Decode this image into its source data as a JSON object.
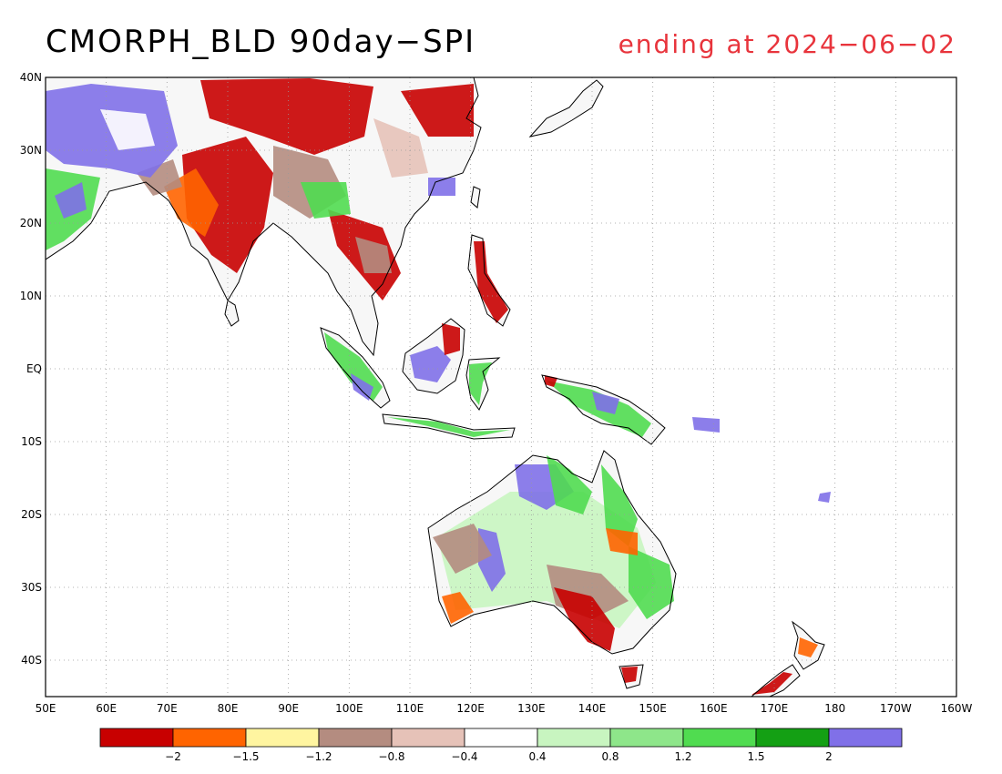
{
  "title": "CMORPH_BLD 90day−SPI",
  "subtitle": "ending at 2024−06−02",
  "colors": {
    "title": "#000000",
    "subtitle": "#e8343c",
    "land_base": "#f7f7f7",
    "coast": "#000000",
    "grid": "#9a9a9a",
    "dry_extreme": "#c80000",
    "dry_severe": "#ff6400",
    "dry_moderate": "#fff5a0",
    "dry_mild": "#b48c80",
    "dry_slight": "#e6c2b8",
    "neutral": "#ffffff",
    "wet_slight": "#c8f5c0",
    "wet_mild": "#8ee68a",
    "wet_moderate": "#50dc50",
    "wet_severe": "#14a014",
    "wet_extreme": "#8070e8"
  },
  "lat_labels": [
    "40N",
    "30N",
    "20N",
    "10N",
    "EQ",
    "10S",
    "20S",
    "30S",
    "40S"
  ],
  "lon_labels": [
    "50E",
    "60E",
    "70E",
    "80E",
    "90E",
    "100E",
    "110E",
    "120E",
    "130E",
    "140E",
    "150E",
    "160E",
    "170E",
    "180",
    "170W",
    "160W"
  ],
  "legend": {
    "labels": [
      "−2",
      "−1.5",
      "−1.2",
      "−0.8",
      "−0.4",
      "0.4",
      "0.8",
      "1.2",
      "1.5",
      "2"
    ],
    "colors": [
      "#c80000",
      "#ff6400",
      "#fff5a0",
      "#b48c80",
      "#e6c2b8",
      "#ffffff",
      "#c8f5c0",
      "#8ee68a",
      "#50dc50",
      "#14a014",
      "#8070e8"
    ]
  }
}
